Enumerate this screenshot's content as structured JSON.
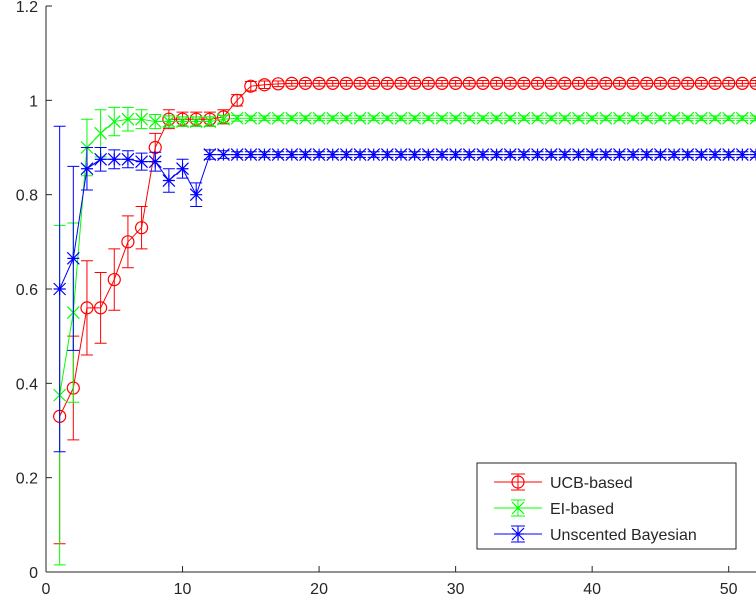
{
  "chart_data": {
    "type": "line",
    "title": "",
    "xlabel": "",
    "ylabel": "",
    "xlim": [
      0,
      52
    ],
    "ylim": [
      0,
      1.2
    ],
    "x_ticks": [
      "0",
      "10",
      "20",
      "30",
      "40",
      "50"
    ],
    "y_ticks": [
      "0",
      "0.2",
      "0.4",
      "0.6",
      "0.8",
      "1",
      "1.2"
    ],
    "grid": false,
    "legend_position": "bottom-right",
    "series": [
      {
        "name": "UCB-based",
        "color": "#ff0000",
        "marker": "circle",
        "x_start": 1,
        "x_end": 52,
        "values": [
          0.33,
          0.39,
          0.56,
          0.56,
          0.62,
          0.7,
          0.73,
          0.9,
          0.96,
          0.96,
          0.96,
          0.96,
          0.965,
          1.0,
          1.03,
          1.033,
          1.035,
          1.036,
          1.036,
          1.036,
          1.036,
          1.036,
          1.036,
          1.036,
          1.036,
          1.036,
          1.036,
          1.036,
          1.036,
          1.036,
          1.036,
          1.036,
          1.036,
          1.036,
          1.036,
          1.036,
          1.036,
          1.036,
          1.036,
          1.036,
          1.036,
          1.036,
          1.036,
          1.036,
          1.036,
          1.036,
          1.036,
          1.036,
          1.036,
          1.036,
          1.036,
          1.036
        ],
        "errors": [
          0.27,
          0.11,
          0.1,
          0.075,
          0.065,
          0.055,
          0.045,
          0.03,
          0.02,
          0.015,
          0.015,
          0.015,
          0.015,
          0.012,
          0.01,
          0.008,
          0.006,
          0.006,
          0.006,
          0.006,
          0.006,
          0.006,
          0.006,
          0.006,
          0.006,
          0.006,
          0.006,
          0.006,
          0.006,
          0.006,
          0.006,
          0.006,
          0.006,
          0.006,
          0.006,
          0.006,
          0.006,
          0.006,
          0.006,
          0.006,
          0.006,
          0.006,
          0.006,
          0.006,
          0.006,
          0.006,
          0.006,
          0.006,
          0.006,
          0.006,
          0.006,
          0.006
        ]
      },
      {
        "name": "EI-based",
        "color": "#00ff00",
        "marker": "x",
        "x_start": 1,
        "x_end": 52,
        "values": [
          0.375,
          0.55,
          0.9,
          0.93,
          0.955,
          0.96,
          0.96,
          0.955,
          0.955,
          0.955,
          0.955,
          0.955,
          0.96,
          0.962,
          0.962,
          0.962,
          0.962,
          0.962,
          0.962,
          0.962,
          0.962,
          0.962,
          0.962,
          0.962,
          0.962,
          0.962,
          0.962,
          0.962,
          0.962,
          0.962,
          0.962,
          0.962,
          0.962,
          0.962,
          0.962,
          0.962,
          0.962,
          0.962,
          0.962,
          0.962,
          0.962,
          0.962,
          0.962,
          0.962,
          0.962,
          0.962,
          0.962,
          0.962,
          0.962,
          0.962,
          0.962,
          0.962
        ],
        "errors": [
          0.36,
          0.19,
          0.06,
          0.05,
          0.03,
          0.025,
          0.02,
          0.015,
          0.012,
          0.01,
          0.01,
          0.01,
          0.008,
          0.006,
          0.005,
          0.005,
          0.005,
          0.005,
          0.005,
          0.005,
          0.005,
          0.005,
          0.005,
          0.005,
          0.005,
          0.005,
          0.005,
          0.005,
          0.005,
          0.005,
          0.005,
          0.005,
          0.005,
          0.005,
          0.005,
          0.005,
          0.005,
          0.005,
          0.005,
          0.005,
          0.005,
          0.005,
          0.005,
          0.005,
          0.005,
          0.005,
          0.005,
          0.005,
          0.005,
          0.005,
          0.005,
          0.005
        ]
      },
      {
        "name": "Unscented Bayesian",
        "color": "#0000ff",
        "marker": "asterisk",
        "x_start": 1,
        "x_end": 52,
        "values": [
          0.6,
          0.665,
          0.855,
          0.875,
          0.875,
          0.875,
          0.87,
          0.87,
          0.83,
          0.855,
          0.8,
          0.885,
          0.885,
          0.885,
          0.885,
          0.885,
          0.885,
          0.885,
          0.885,
          0.885,
          0.885,
          0.885,
          0.885,
          0.885,
          0.885,
          0.885,
          0.885,
          0.885,
          0.885,
          0.885,
          0.885,
          0.885,
          0.885,
          0.885,
          0.885,
          0.885,
          0.885,
          0.885,
          0.885,
          0.885,
          0.885,
          0.885,
          0.885,
          0.885,
          0.885,
          0.885,
          0.885,
          0.885,
          0.885,
          0.885,
          0.885,
          0.885
        ],
        "errors": [
          0.345,
          0.195,
          0.045,
          0.025,
          0.02,
          0.018,
          0.018,
          0.02,
          0.025,
          0.02,
          0.025,
          0.01,
          0.008,
          0.006,
          0.006,
          0.006,
          0.006,
          0.006,
          0.006,
          0.006,
          0.006,
          0.006,
          0.006,
          0.006,
          0.006,
          0.006,
          0.006,
          0.006,
          0.006,
          0.006,
          0.006,
          0.006,
          0.006,
          0.006,
          0.006,
          0.006,
          0.006,
          0.006,
          0.006,
          0.006,
          0.006,
          0.006,
          0.006,
          0.006,
          0.006,
          0.006,
          0.006,
          0.006,
          0.006,
          0.006,
          0.006,
          0.006
        ]
      }
    ]
  }
}
